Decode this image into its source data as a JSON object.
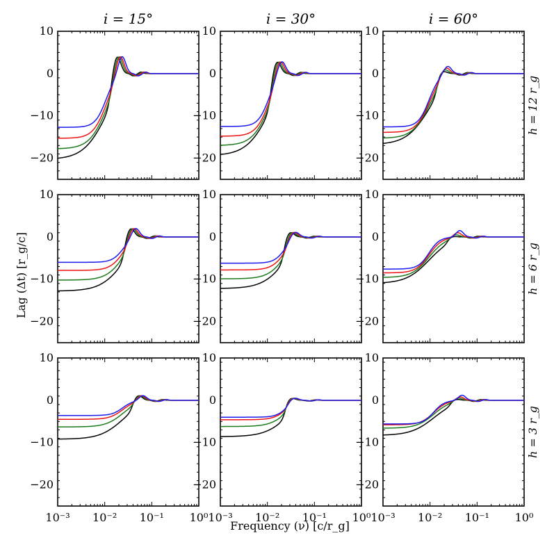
{
  "chart_data": {
    "type": "line",
    "grid": {
      "rows": 3,
      "cols": 3
    },
    "column_titles": [
      "i = 15°",
      "i = 30°",
      "i = 60°"
    ],
    "row_labels": [
      "h = 12 r_g",
      "h = 6 r_g",
      "h = 3 r_g"
    ],
    "xlabel": "Frequency (ν) [c/r_g]",
    "ylabel": "Lag (Δt) [r_g/c]",
    "xscale": "log",
    "xlim": [
      0.001,
      1
    ],
    "ylim": [
      -25,
      10
    ],
    "xticks": [
      0.001,
      0.01,
      0.1,
      1
    ],
    "xtick_labels": [
      "10⁻³",
      "10⁻²",
      "10⁻¹",
      "10⁰"
    ],
    "yticks": [
      -20,
      -10,
      0,
      10
    ],
    "ytick_labels": [
      "−20",
      "−10",
      "0",
      "10"
    ],
    "series_colors": {
      "black": "#000000",
      "green": "#1a7a1a",
      "red": "#ee1111",
      "blue": "#1a1aee"
    },
    "panels": [
      {
        "row": 0,
        "col": 0,
        "series": [
          {
            "name": "black",
            "low": -20.3,
            "cross": 0.0105,
            "steep": 1.8,
            "rise": 0.0185,
            "peak": 4.0,
            "osc": 0.6
          },
          {
            "name": "green",
            "low": -17.8,
            "cross": 0.0105,
            "steep": 2.4,
            "rise": 0.02,
            "peak": 4.0,
            "osc": 0.6
          },
          {
            "name": "red",
            "low": -15.3,
            "cross": 0.0105,
            "steep": 3.1,
            "rise": 0.0215,
            "peak": 4.0,
            "osc": 0.6
          },
          {
            "name": "blue",
            "low": -12.7,
            "cross": 0.0105,
            "steep": 3.8,
            "rise": 0.0235,
            "peak": 4.0,
            "osc": 0.6
          }
        ]
      },
      {
        "row": 0,
        "col": 1,
        "series": [
          {
            "name": "black",
            "low": -19.4,
            "cross": 0.0105,
            "steep": 1.8,
            "rise": 0.0162,
            "peak": 2.8,
            "osc": 0.5
          },
          {
            "name": "green",
            "low": -17.0,
            "cross": 0.0105,
            "steep": 2.4,
            "rise": 0.0175,
            "peak": 2.8,
            "osc": 0.5
          },
          {
            "name": "red",
            "low": -14.8,
            "cross": 0.0105,
            "steep": 3.1,
            "rise": 0.019,
            "peak": 2.8,
            "osc": 0.5
          },
          {
            "name": "blue",
            "low": -12.5,
            "cross": 0.0105,
            "steep": 3.8,
            "rise": 0.0205,
            "peak": 2.8,
            "osc": 0.5
          }
        ]
      },
      {
        "row": 0,
        "col": 2,
        "series": [
          {
            "name": "black",
            "low": -16.8,
            "cross": 0.0095,
            "steep": 1.8,
            "rise": 0.0195,
            "peak": 0.5,
            "osc": 0.4
          },
          {
            "name": "green",
            "low": -15.3,
            "cross": 0.0095,
            "steep": 2.4,
            "rise": 0.021,
            "peak": 0.9,
            "osc": 0.4
          },
          {
            "name": "red",
            "low": -13.9,
            "cross": 0.0095,
            "steep": 3.1,
            "rise": 0.0225,
            "peak": 1.3,
            "osc": 0.4
          },
          {
            "name": "blue",
            "low": -12.6,
            "cross": 0.0095,
            "steep": 3.8,
            "rise": 0.024,
            "peak": 1.7,
            "osc": 0.4
          }
        ]
      },
      {
        "row": 1,
        "col": 0,
        "series": [
          {
            "name": "black",
            "low": -12.8,
            "cross": 0.024,
            "steep": 1.8,
            "rise": 0.036,
            "peak": 2.0,
            "osc": 0.4
          },
          {
            "name": "green",
            "low": -10.2,
            "cross": 0.024,
            "steep": 2.4,
            "rise": 0.039,
            "peak": 2.0,
            "osc": 0.4
          },
          {
            "name": "red",
            "low": -7.9,
            "cross": 0.024,
            "steep": 3.1,
            "rise": 0.042,
            "peak": 2.0,
            "osc": 0.4
          },
          {
            "name": "blue",
            "low": -6.0,
            "cross": 0.024,
            "steep": 3.8,
            "rise": 0.046,
            "peak": 2.0,
            "osc": 0.4
          }
        ]
      },
      {
        "row": 1,
        "col": 1,
        "series": [
          {
            "name": "black",
            "low": -12.2,
            "cross": 0.023,
            "steep": 1.8,
            "rise": 0.031,
            "peak": 1.1,
            "osc": 0.3
          },
          {
            "name": "green",
            "low": -9.9,
            "cross": 0.023,
            "steep": 2.4,
            "rise": 0.034,
            "peak": 1.1,
            "osc": 0.3
          },
          {
            "name": "red",
            "low": -7.8,
            "cross": 0.023,
            "steep": 3.1,
            "rise": 0.037,
            "peak": 1.1,
            "osc": 0.3
          },
          {
            "name": "blue",
            "low": -6.2,
            "cross": 0.023,
            "steep": 3.8,
            "rise": 0.04,
            "peak": 1.1,
            "osc": 0.3
          }
        ]
      },
      {
        "row": 1,
        "col": 2,
        "series": [
          {
            "name": "black",
            "low": -11.0,
            "cross": 0.0095,
            "steep": 1.8,
            "rise": 0.033,
            "peak": 0.1,
            "osc": 0.3
          },
          {
            "name": "green",
            "low": -9.6,
            "cross": 0.0095,
            "steep": 2.4,
            "rise": 0.036,
            "peak": 0.5,
            "osc": 0.3
          },
          {
            "name": "red",
            "low": -8.5,
            "cross": 0.0095,
            "steep": 3.1,
            "rise": 0.039,
            "peak": 1.0,
            "osc": 0.3
          },
          {
            "name": "blue",
            "low": -7.6,
            "cross": 0.0095,
            "steep": 3.8,
            "rise": 0.043,
            "peak": 1.5,
            "osc": 0.3
          }
        ]
      },
      {
        "row": 2,
        "col": 0,
        "series": [
          {
            "name": "black",
            "low": -9.2,
            "cross": 0.024,
            "steep": 1.8,
            "rise": 0.053,
            "peak": 1.1,
            "osc": 0.3
          },
          {
            "name": "green",
            "low": -6.3,
            "cross": 0.024,
            "steep": 2.4,
            "rise": 0.057,
            "peak": 1.1,
            "osc": 0.3
          },
          {
            "name": "red",
            "low": -4.5,
            "cross": 0.024,
            "steep": 3.1,
            "rise": 0.061,
            "peak": 1.1,
            "osc": 0.3
          },
          {
            "name": "blue",
            "low": -3.6,
            "cross": 0.024,
            "steep": 3.8,
            "rise": 0.065,
            "peak": 1.1,
            "osc": 0.3
          }
        ]
      },
      {
        "row": 2,
        "col": 1,
        "series": [
          {
            "name": "black",
            "low": -8.6,
            "cross": 0.025,
            "steep": 1.8,
            "rise": 0.033,
            "peak": 0.5,
            "osc": 0.2
          },
          {
            "name": "green",
            "low": -6.2,
            "cross": 0.025,
            "steep": 2.4,
            "rise": 0.035,
            "peak": 0.5,
            "osc": 0.2
          },
          {
            "name": "red",
            "low": -4.6,
            "cross": 0.025,
            "steep": 3.1,
            "rise": 0.037,
            "peak": 0.5,
            "osc": 0.2
          },
          {
            "name": "blue",
            "low": -4.0,
            "cross": 0.025,
            "steep": 3.8,
            "rise": 0.039,
            "peak": 0.5,
            "osc": 0.2
          }
        ]
      },
      {
        "row": 2,
        "col": 2,
        "series": [
          {
            "name": "black",
            "low": -8.3,
            "cross": 0.012,
            "steep": 1.8,
            "rise": 0.038,
            "peak": 0.2,
            "osc": 0.3
          },
          {
            "name": "green",
            "low": -6.6,
            "cross": 0.012,
            "steep": 2.4,
            "rise": 0.041,
            "peak": 0.5,
            "osc": 0.3
          },
          {
            "name": "red",
            "low": -5.8,
            "cross": 0.012,
            "steep": 3.1,
            "rise": 0.044,
            "peak": 0.8,
            "osc": 0.3
          },
          {
            "name": "blue",
            "low": -5.6,
            "cross": 0.012,
            "steep": 3.8,
            "rise": 0.048,
            "peak": 1.2,
            "osc": 0.3
          }
        ]
      }
    ]
  }
}
